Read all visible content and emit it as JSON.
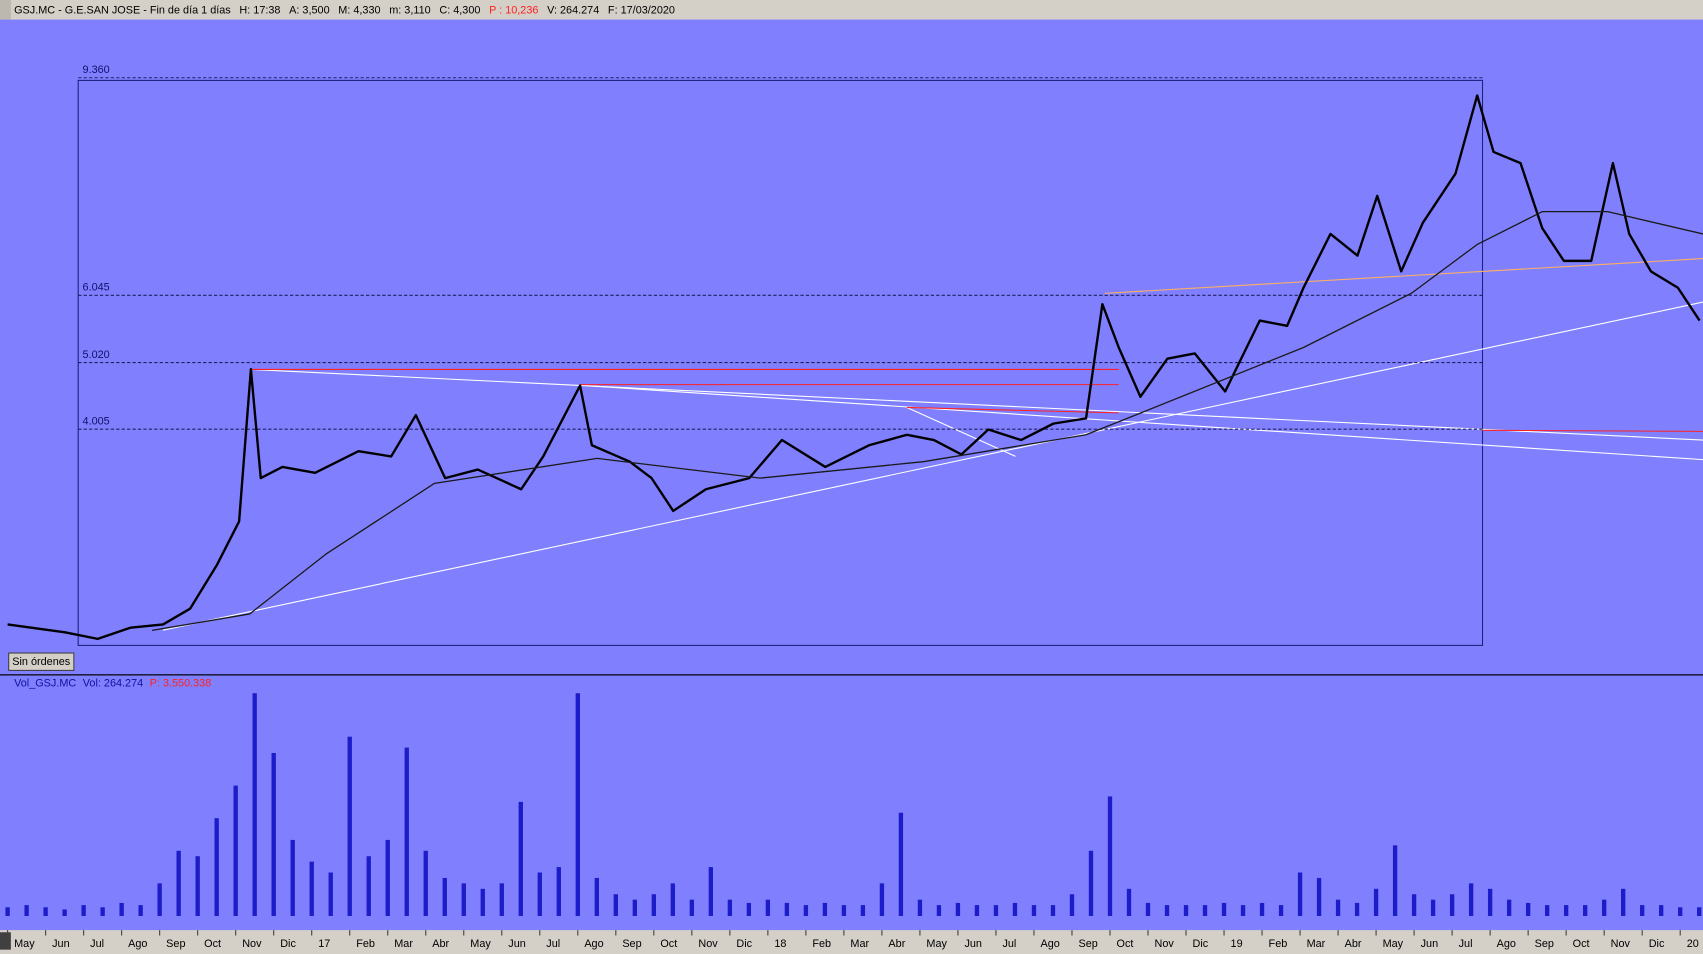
{
  "header": {
    "items": [
      "GSJ.MC - G.E.SAN JOSE - Fin de día 1 días",
      "H: 17:38",
      "A: 3,500",
      "M: 4,330",
      "m: 3,110",
      "C: 4,300",
      "P : 10,236",
      "V: 264.274",
      "F: 17/03/2020"
    ]
  },
  "volume_header": {
    "items": [
      "Vol_GSJ.MC",
      "Vol: 264.274",
      "P: 3.550.338"
    ]
  },
  "button": "Sin órdenes",
  "chart_data": [
    {
      "type": "line",
      "xlim": [
        -0.2,
        44.6
      ],
      "ylim": [
        0.28,
        10.545
      ],
      "levels": [
        {
          "value": 9.36,
          "label": "9.360"
        },
        {
          "value": 6.045,
          "label": "6.045"
        },
        {
          "value": 5.02,
          "label": "5.020"
        },
        {
          "value": 4.005,
          "label": "4.005"
        }
      ],
      "xticks": [
        {
          "value": 0,
          "label": "May"
        },
        {
          "value": 1,
          "label": "Jun"
        },
        {
          "value": 2,
          "label": "Jul"
        },
        {
          "value": 3,
          "label": "Ago"
        },
        {
          "value": 4,
          "label": "Sep"
        },
        {
          "value": 5,
          "label": "Oct"
        },
        {
          "value": 6,
          "label": "Nov"
        },
        {
          "value": 7,
          "label": "Dic"
        },
        {
          "value": 8,
          "label": "17"
        },
        {
          "value": 9,
          "label": "Feb"
        },
        {
          "value": 10,
          "label": "Mar"
        },
        {
          "value": 11,
          "label": "Abr"
        },
        {
          "value": 12,
          "label": "May"
        },
        {
          "value": 13,
          "label": "Jun"
        },
        {
          "value": 14,
          "label": "Jul"
        },
        {
          "value": 15,
          "label": "Ago"
        },
        {
          "value": 16,
          "label": "Sep"
        },
        {
          "value": 17,
          "label": "Oct"
        },
        {
          "value": 18,
          "label": "Nov"
        },
        {
          "value": 19,
          "label": "Dic"
        },
        {
          "value": 20,
          "label": "18"
        },
        {
          "value": 21,
          "label": "Feb"
        },
        {
          "value": 22,
          "label": "Mar"
        },
        {
          "value": 23,
          "label": "Abr"
        },
        {
          "value": 24,
          "label": "May"
        },
        {
          "value": 25,
          "label": "Jun"
        },
        {
          "value": 26,
          "label": "Jul"
        },
        {
          "value": 27,
          "label": "Ago"
        },
        {
          "value": 28,
          "label": "Sep"
        },
        {
          "value": 29,
          "label": "Oct"
        },
        {
          "value": 30,
          "label": "Nov"
        },
        {
          "value": 31,
          "label": "Dic"
        },
        {
          "value": 32,
          "label": "19"
        },
        {
          "value": 33,
          "label": "Feb"
        },
        {
          "value": 34,
          "label": "Mar"
        },
        {
          "value": 35,
          "label": "Abr"
        },
        {
          "value": 36,
          "label": "May"
        },
        {
          "value": 37,
          "label": "Jun"
        },
        {
          "value": 38,
          "label": "Jul"
        },
        {
          "value": 39,
          "label": "Ago"
        },
        {
          "value": 40,
          "label": "Sep"
        },
        {
          "value": 41,
          "label": "Oct"
        },
        {
          "value": 42,
          "label": "Nov"
        },
        {
          "value": 43,
          "label": "Dic"
        },
        {
          "value": 44,
          "label": "20"
        }
      ],
      "series": [
        {
          "color": "#000000",
          "x": [
            0,
            1.51,
            2.37,
            3.23,
            4.09,
            4.8,
            5.51,
            6.09,
            6.4,
            6.66,
            7.23,
            8.09,
            9.23,
            10.09,
            10.74,
            11.51,
            12.37,
            13.51,
            14.09,
            15.06,
            15.37,
            16.37,
            16.94,
            17.51,
            18.37,
            19.51,
            20.37,
            21.51,
            22.66,
            23.66,
            24.37,
            25.09,
            25.8,
            26.66,
            27.51,
            28.37,
            28.8,
            29.23,
            29.8,
            30.51,
            31.23,
            32.03,
            32.94,
            33.66,
            34.09,
            34.8,
            35.51,
            36.03,
            36.66,
            37.23,
            38.09,
            38.66,
            39.09,
            39.8,
            40.37,
            40.94,
            41.66,
            42.23,
            42.66,
            43.23,
            43.94,
            44.51
          ],
          "values": [
            1.03,
            0.91,
            0.81,
            0.98,
            1.03,
            1.27,
            1.94,
            2.6,
            4.92,
            3.26,
            3.43,
            3.34,
            3.67,
            3.59,
            4.22,
            3.26,
            3.39,
            3.09,
            3.59,
            4.67,
            3.76,
            3.51,
            3.26,
            2.76,
            3.09,
            3.26,
            3.84,
            3.43,
            3.76,
            3.92,
            3.84,
            3.62,
            4.0,
            3.84,
            4.09,
            4.17,
            5.91,
            5.25,
            4.5,
            5.08,
            5.16,
            4.58,
            5.66,
            5.58,
            6.16,
            6.98,
            6.65,
            7.56,
            6.41,
            7.15,
            7.9,
            9.09,
            8.23,
            8.06,
            7.07,
            6.57,
            6.57,
            8.06,
            6.98,
            6.41,
            6.16,
            5.66
          ]
        },
        {
          "color": "#1a1a1a",
          "x": [
            3.8,
            6.37,
            8.37,
            11.23,
            15.51,
            19.8,
            24.09,
            28.37,
            29.8,
            34.09,
            36.94,
            38.66,
            40.37,
            42.09,
            44.6
          ],
          "values": [
            0.94,
            1.19,
            2.1,
            3.18,
            3.56,
            3.26,
            3.51,
            3.92,
            4.25,
            5.25,
            6.08,
            6.82,
            7.32,
            7.32,
            6.98
          ]
        }
      ]
    },
    {
      "type": "bar",
      "color": "#1c1cc8",
      "ylim": [
        0,
        6864000
      ],
      "x": [
        0,
        0.5,
        1,
        1.5,
        2,
        2.5,
        3,
        3.5,
        4,
        4.5,
        5,
        5.5,
        6,
        6.5,
        7,
        7.5,
        8,
        8.5,
        9,
        9.5,
        10,
        10.5,
        11,
        11.5,
        12,
        12.5,
        13,
        13.5,
        14,
        14.5,
        15,
        15.5,
        16,
        16.5,
        17,
        17.5,
        18,
        18.5,
        19,
        19.5,
        20,
        20.5,
        21,
        21.5,
        22,
        22.5,
        23,
        23.5,
        24,
        24.5,
        25,
        25.5,
        26,
        26.5,
        27,
        27.5,
        28,
        28.5,
        29,
        29.5,
        30,
        30.5,
        31,
        31.5,
        32,
        32.5,
        33,
        33.5,
        34,
        34.5,
        35,
        35.5,
        36,
        36.5,
        37,
        37.5,
        38,
        38.5,
        39,
        39.5,
        40,
        40.5,
        41,
        41.5,
        42,
        42.5,
        43,
        43.5,
        44,
        44.5
      ],
      "values": [
        264000,
        330000,
        264000,
        198000,
        330000,
        264000,
        396000,
        330000,
        990000,
        1980000,
        1815000,
        2970000,
        3960000,
        6765000,
        4950000,
        2310000,
        1650000,
        1320000,
        5445000,
        1815000,
        2310000,
        5115000,
        1980000,
        1155000,
        990000,
        825000,
        990000,
        3465000,
        1320000,
        1485000,
        6765000,
        1155000,
        660000,
        495000,
        660000,
        990000,
        495000,
        1485000,
        495000,
        396000,
        495000,
        396000,
        330000,
        396000,
        330000,
        330000,
        990000,
        3135000,
        495000,
        330000,
        396000,
        330000,
        330000,
        396000,
        330000,
        330000,
        660000,
        1980000,
        3630000,
        825000,
        396000,
        330000,
        330000,
        330000,
        396000,
        330000,
        396000,
        330000,
        1320000,
        1155000,
        495000,
        396000,
        825000,
        2145000,
        660000,
        495000,
        660000,
        990000,
        825000,
        495000,
        396000,
        330000,
        330000,
        330000,
        495000,
        825000,
        330000,
        330000,
        264000,
        264000
      ]
    }
  ]
}
